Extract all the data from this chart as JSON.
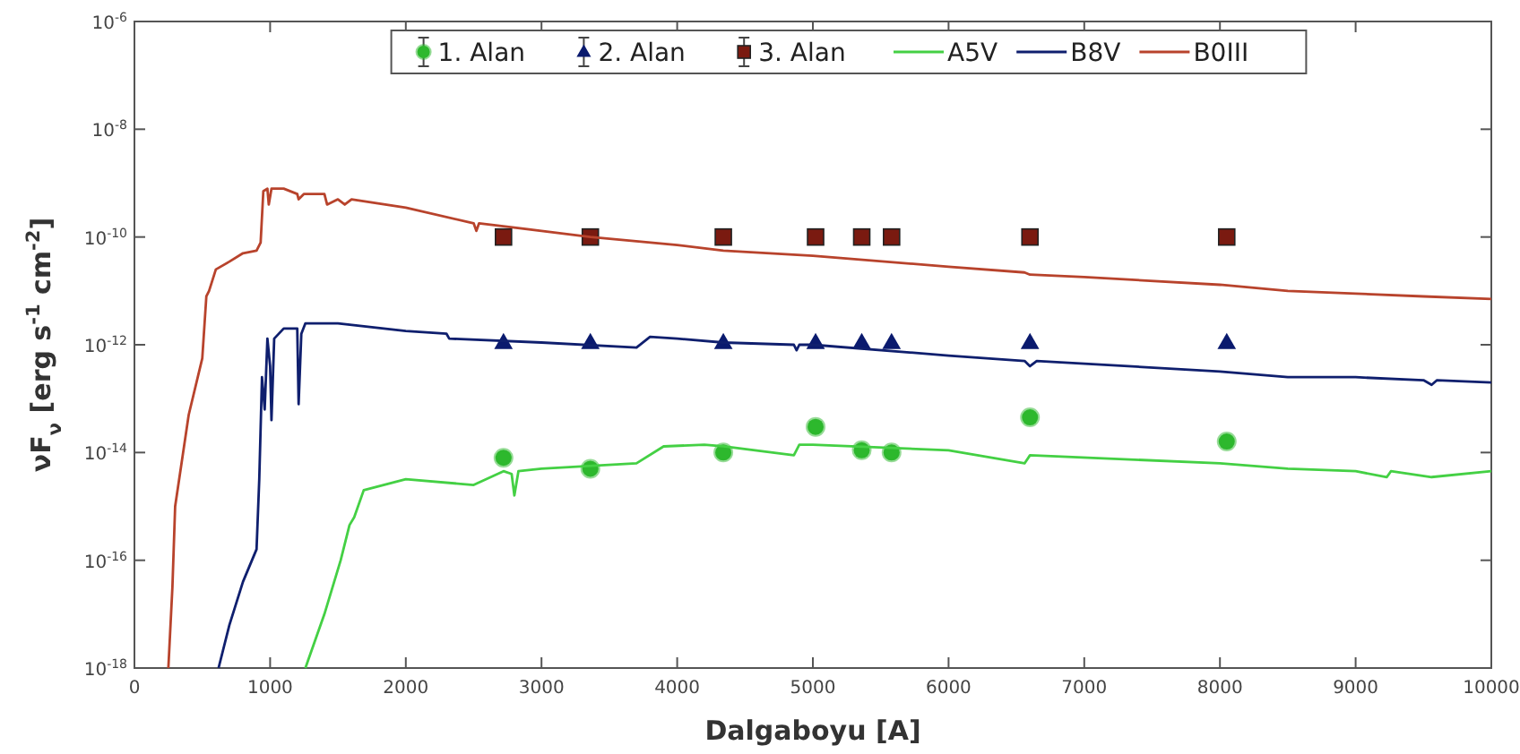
{
  "chart_data": {
    "type": "line",
    "xlabel": "Dalgaboyu [A]",
    "ylabel": "νF$_{ν}$ [erg s$^{-1}$ cm$^{-2}$]",
    "log": "y",
    "xlim": [
      0,
      10000
    ],
    "xticks": [
      0,
      1000,
      2000,
      3000,
      4000,
      5000,
      6000,
      7000,
      8000,
      9000,
      10000
    ],
    "ylim": [
      1e-18,
      1e-06
    ],
    "yticks": [
      {
        "value": 1e-18,
        "label": "10$^{-18}$"
      },
      {
        "value": 1e-16,
        "label": "10$^{-16}$"
      },
      {
        "value": 1e-14,
        "label": "10$^{-14}$"
      },
      {
        "value": 1e-12,
        "label": "10$^{-12}$"
      },
      {
        "value": 1e-10,
        "label": "10$^{-10}$"
      },
      {
        "value": 1e-08,
        "label": "10$^{-8}$"
      },
      {
        "value": 1e-06,
        "label": "10$^{-6}$"
      }
    ],
    "grid": false,
    "legend": "top",
    "series": [
      {
        "name": "1. Alan",
        "type": "scatter",
        "marker": "circle",
        "color": "#2db82d",
        "x": [
          2720,
          3360,
          4340,
          5020,
          5360,
          5580,
          6600,
          8050
        ],
        "values": [
          8e-15,
          5e-15,
          1e-14,
          3e-14,
          1.1e-14,
          1e-14,
          4.5e-14,
          1.6e-14
        ]
      },
      {
        "name": "2. Alan",
        "type": "scatter",
        "marker": "triangle",
        "color": "#0a1a6e",
        "x": [
          2720,
          3360,
          4340,
          5020,
          5360,
          5580,
          6600,
          8050
        ],
        "values": [
          1.1e-12,
          1.1e-12,
          1.1e-12,
          1.1e-12,
          1.1e-12,
          1.1e-12,
          1.1e-12,
          1.1e-12
        ]
      },
      {
        "name": "3. Alan",
        "type": "scatter",
        "marker": "square",
        "color": "#7a1a10",
        "x": [
          2720,
          3360,
          4340,
          5020,
          5360,
          5580,
          6600,
          8050
        ],
        "values": [
          1e-10,
          1e-10,
          1e-10,
          1e-10,
          1e-10,
          1e-10,
          1e-10,
          1e-10
        ]
      },
      {
        "name": "A5V",
        "color": "#44d044",
        "x": [
          1260,
          1400,
          1520,
          1585,
          1620,
          1690,
          2000,
          2500,
          2720,
          2780,
          2800,
          2830,
          3000,
          3700,
          3900,
          4200,
          4340,
          4860,
          4900,
          5000,
          6000,
          6560,
          6600,
          8000,
          8500,
          9000,
          9230,
          9260,
          9560,
          10000
        ],
        "values": [
          1e-18,
          1e-17,
          1e-16,
          4.5e-16,
          6.3e-16,
          2e-15,
          3.2e-15,
          2.5e-15,
          4.5e-15,
          4e-15,
          1.6e-15,
          4.5e-15,
          5e-15,
          6.3e-15,
          1.3e-14,
          1.4e-14,
          1.3e-14,
          8.9e-15,
          1.4e-14,
          1.4e-14,
          1.1e-14,
          6.3e-15,
          8.9e-15,
          6.3e-15,
          5e-15,
          4.5e-15,
          3.5e-15,
          4.5e-15,
          3.5e-15,
          4.5e-15
        ]
      },
      {
        "name": "B8V",
        "color": "#0f1f6e",
        "x": [
          620,
          700,
          800,
          900,
          920,
          940,
          960,
          980,
          1000,
          1010,
          1030,
          1100,
          1200,
          1210,
          1230,
          1260,
          1500,
          2000,
          2300,
          2320,
          3000,
          3700,
          3800,
          4000,
          4340,
          4860,
          4880,
          4900,
          5000,
          6000,
          6560,
          6600,
          6650,
          8000,
          8500,
          9000,
          9500,
          9560,
          9600,
          10000
        ],
        "values": [
          1e-18,
          6.3e-18,
          4e-17,
          1.6e-16,
          3.2e-15,
          2.5e-13,
          6.3e-14,
          1.3e-12,
          4e-13,
          4e-14,
          1.3e-12,
          2e-12,
          2e-12,
          7.9e-14,
          1.6e-12,
          2.5e-12,
          2.5e-12,
          1.8e-12,
          1.6e-12,
          1.3e-12,
          1.1e-12,
          8.9e-13,
          1.4e-12,
          1.3e-12,
          1.1e-12,
          1e-12,
          7.9e-13,
          1e-12,
          1e-12,
          6.3e-13,
          5e-13,
          4e-13,
          5e-13,
          3.2e-13,
          2.5e-13,
          2.5e-13,
          2.2e-13,
          1.8e-13,
          2.2e-13,
          2e-13
        ]
      },
      {
        "name": "B0III",
        "color": "#b8432c",
        "x": [
          250,
          280,
          300,
          400,
          500,
          530,
          550,
          600,
          700,
          800,
          900,
          930,
          950,
          980,
          990,
          1010,
          1100,
          1200,
          1210,
          1250,
          1400,
          1420,
          1500,
          1550,
          1600,
          2000,
          2500,
          2520,
          2540,
          3000,
          3360,
          4000,
          4340,
          5000,
          6000,
          6560,
          6600,
          7000,
          8000,
          8500,
          9000,
          9500,
          10000
        ],
        "values": [
          1e-18,
          3.2e-17,
          1e-15,
          5e-14,
          5.6e-13,
          7.9e-12,
          1e-11,
          2.5e-11,
          3.5e-11,
          5e-11,
          5.6e-11,
          7.9e-11,
          7.1e-10,
          7.9e-10,
          4e-10,
          7.9e-10,
          7.9e-10,
          6.3e-10,
          5e-10,
          6.3e-10,
          6.3e-10,
          4e-10,
          5e-10,
          4e-10,
          5e-10,
          3.5e-10,
          1.8e-10,
          1.3e-10,
          1.8e-10,
          1.3e-10,
          1e-10,
          7.1e-11,
          5.6e-11,
          4.5e-11,
          2.8e-11,
          2.2e-11,
          2e-11,
          1.8e-11,
          1.3e-11,
          1e-11,
          8.9e-12,
          7.9e-12,
          7.1e-12
        ]
      }
    ]
  }
}
